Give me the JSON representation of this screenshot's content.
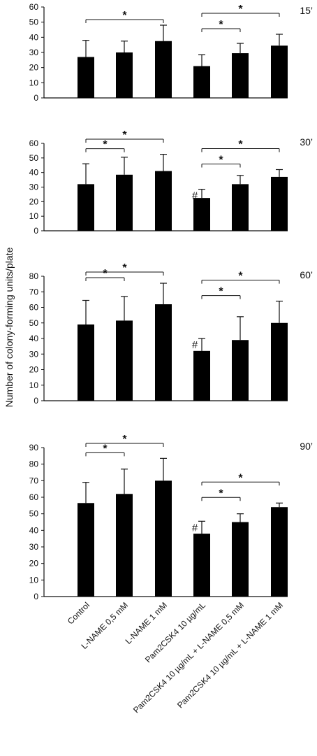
{
  "figure": {
    "ylabel": "Number of colony-forming units/plate",
    "categories": [
      "Control",
      "L-NAME 0,5 mM",
      "L-NAME 1 mM",
      "Pam2CSK4 10 µg/mL",
      "Pam2CSK4 10 µg/mL + L-NAME 0,5 mM",
      "Pam2CSK4 10 µg/mL + L-NAME 1 mM"
    ]
  },
  "chart_data": [
    {
      "type": "bar",
      "panel_label": "15’",
      "ylim": [
        0,
        60
      ],
      "yticks": [
        0,
        10,
        20,
        30,
        40,
        50,
        60
      ],
      "values": [
        27,
        30,
        37.5,
        21,
        29.5,
        34.5
      ],
      "errors": [
        11,
        7.5,
        10.5,
        7.5,
        6.5,
        7.5
      ],
      "hash_markers": [],
      "significance": [
        {
          "from": 0,
          "to": 2,
          "label": "*"
        },
        {
          "from": 3,
          "to": 4,
          "label": "*"
        },
        {
          "from": 3,
          "to": 5,
          "label": "*"
        }
      ]
    },
    {
      "type": "bar",
      "panel_label": "30’",
      "ylim": [
        0,
        60
      ],
      "yticks": [
        0,
        10,
        20,
        30,
        40,
        50,
        60
      ],
      "values": [
        32,
        38.5,
        41,
        22.5,
        32,
        37
      ],
      "errors": [
        14,
        12,
        11.5,
        6,
        6,
        5
      ],
      "hash_markers": [
        {
          "index": 3,
          "label": "#"
        }
      ],
      "significance": [
        {
          "from": 0,
          "to": 1,
          "label": "*"
        },
        {
          "from": 0,
          "to": 2,
          "label": "*"
        },
        {
          "from": 3,
          "to": 4,
          "label": "*"
        },
        {
          "from": 3,
          "to": 5,
          "label": "*"
        }
      ]
    },
    {
      "type": "bar",
      "panel_label": "60’",
      "ylim": [
        0,
        80
      ],
      "yticks": [
        0,
        10,
        20,
        30,
        40,
        50,
        60,
        70,
        80
      ],
      "values": [
        49,
        51.5,
        62,
        32,
        39,
        50
      ],
      "errors": [
        15.5,
        15.5,
        13.5,
        8,
        15,
        14
      ],
      "hash_markers": [
        {
          "index": 3,
          "label": "#"
        }
      ],
      "significance": [
        {
          "from": 0,
          "to": 1,
          "label": "*"
        },
        {
          "from": 0,
          "to": 2,
          "label": "*"
        },
        {
          "from": 3,
          "to": 4,
          "label": "*"
        },
        {
          "from": 3,
          "to": 5,
          "label": "*"
        }
      ]
    },
    {
      "type": "bar",
      "panel_label": "90’",
      "ylim": [
        0,
        90
      ],
      "yticks": [
        0,
        10,
        20,
        30,
        40,
        50,
        60,
        70,
        80,
        90
      ],
      "values": [
        56.5,
        62,
        70,
        38,
        45,
        54
      ],
      "errors": [
        12.5,
        15,
        13.5,
        7.5,
        5,
        2.5
      ],
      "hash_markers": [
        {
          "index": 3,
          "label": "#"
        }
      ],
      "significance": [
        {
          "from": 0,
          "to": 1,
          "label": "*"
        },
        {
          "from": 0,
          "to": 2,
          "label": "*"
        },
        {
          "from": 3,
          "to": 4,
          "label": "*"
        },
        {
          "from": 3,
          "to": 5,
          "label": "*"
        }
      ]
    }
  ]
}
